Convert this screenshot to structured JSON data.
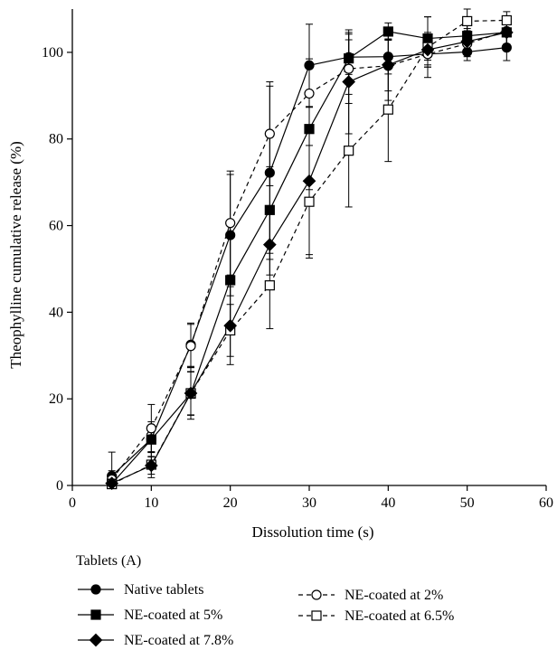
{
  "chart_data": {
    "type": "line",
    "xlabel": "Dissolution time (s)",
    "ylabel": "Theophylline cumulative release (%)",
    "xlim": [
      0,
      60
    ],
    "ylim": [
      0,
      110
    ],
    "xticks": [
      0,
      10,
      20,
      30,
      40,
      50,
      60
    ],
    "yticks": [
      0,
      20,
      40,
      60,
      80,
      100
    ],
    "grid": false,
    "legend_title": "Tablets (A)",
    "legend_placement": "bottom",
    "series": [
      {
        "name": "Native tablets",
        "marker": "circle-filled",
        "line": "solid",
        "x": [
          5,
          10,
          15,
          20,
          25,
          30,
          35,
          40,
          45,
          50,
          55
        ],
        "y": [
          2.2,
          10.7,
          32.5,
          57.8,
          72.2,
          97.0,
          98.9,
          99.0,
          99.6,
          100.1,
          101.1
        ],
        "err": [
          5.5,
          4,
          5,
          14,
          20,
          9.5,
          4,
          4,
          2.5,
          2,
          3
        ]
      },
      {
        "name": "NE-coated at 2%",
        "marker": "circle-open",
        "line": "dashed",
        "x": [
          5,
          10,
          15,
          20,
          25,
          30,
          35,
          40,
          45,
          50,
          55
        ],
        "y": [
          1.4,
          13.2,
          32.2,
          60.6,
          81.2,
          90.5,
          96.2,
          96.9,
          99.6,
          102.0,
          104.9
        ],
        "err": [
          2,
          5.5,
          5,
          12,
          12,
          8,
          8,
          8,
          3,
          3,
          3
        ]
      },
      {
        "name": "NE-coated at 5%",
        "marker": "square-filled",
        "line": "solid",
        "x": [
          5,
          10,
          15,
          20,
          25,
          30,
          35,
          40,
          45,
          50,
          55
        ],
        "y": [
          0.4,
          10.6,
          21.2,
          47.4,
          63.6,
          82.3,
          98.6,
          104.8,
          103.2,
          103.8,
          104.6
        ],
        "err": [
          1,
          3,
          5,
          11,
          10,
          14,
          6,
          2,
          5,
          3,
          3
        ]
      },
      {
        "name": "NE-coated at 6.5%",
        "marker": "square-open",
        "line": "dashed",
        "x": [
          5,
          10,
          15,
          20,
          25,
          30,
          35,
          40,
          45,
          50,
          55
        ],
        "y": [
          0.3,
          4.8,
          21.3,
          35.8,
          46.2,
          65.5,
          77.3,
          86.8,
          101.2,
          107.2,
          107.4
        ],
        "err": [
          1,
          3,
          6,
          6,
          10,
          13,
          13,
          12,
          7,
          3,
          2
        ]
      },
      {
        "name": "NE-coated at 7.8%",
        "marker": "diamond-filled",
        "line": "solid",
        "x": [
          5,
          10,
          15,
          20,
          25,
          30,
          35,
          40,
          45,
          50,
          55
        ],
        "y": [
          0.5,
          4.6,
          21.3,
          36.9,
          55.6,
          70.3,
          93.2,
          97.1,
          100.6,
          102.5,
          104.6
        ],
        "err": [
          1,
          2,
          5,
          9,
          7,
          17,
          12,
          6,
          4,
          3,
          3
        ]
      }
    ]
  }
}
